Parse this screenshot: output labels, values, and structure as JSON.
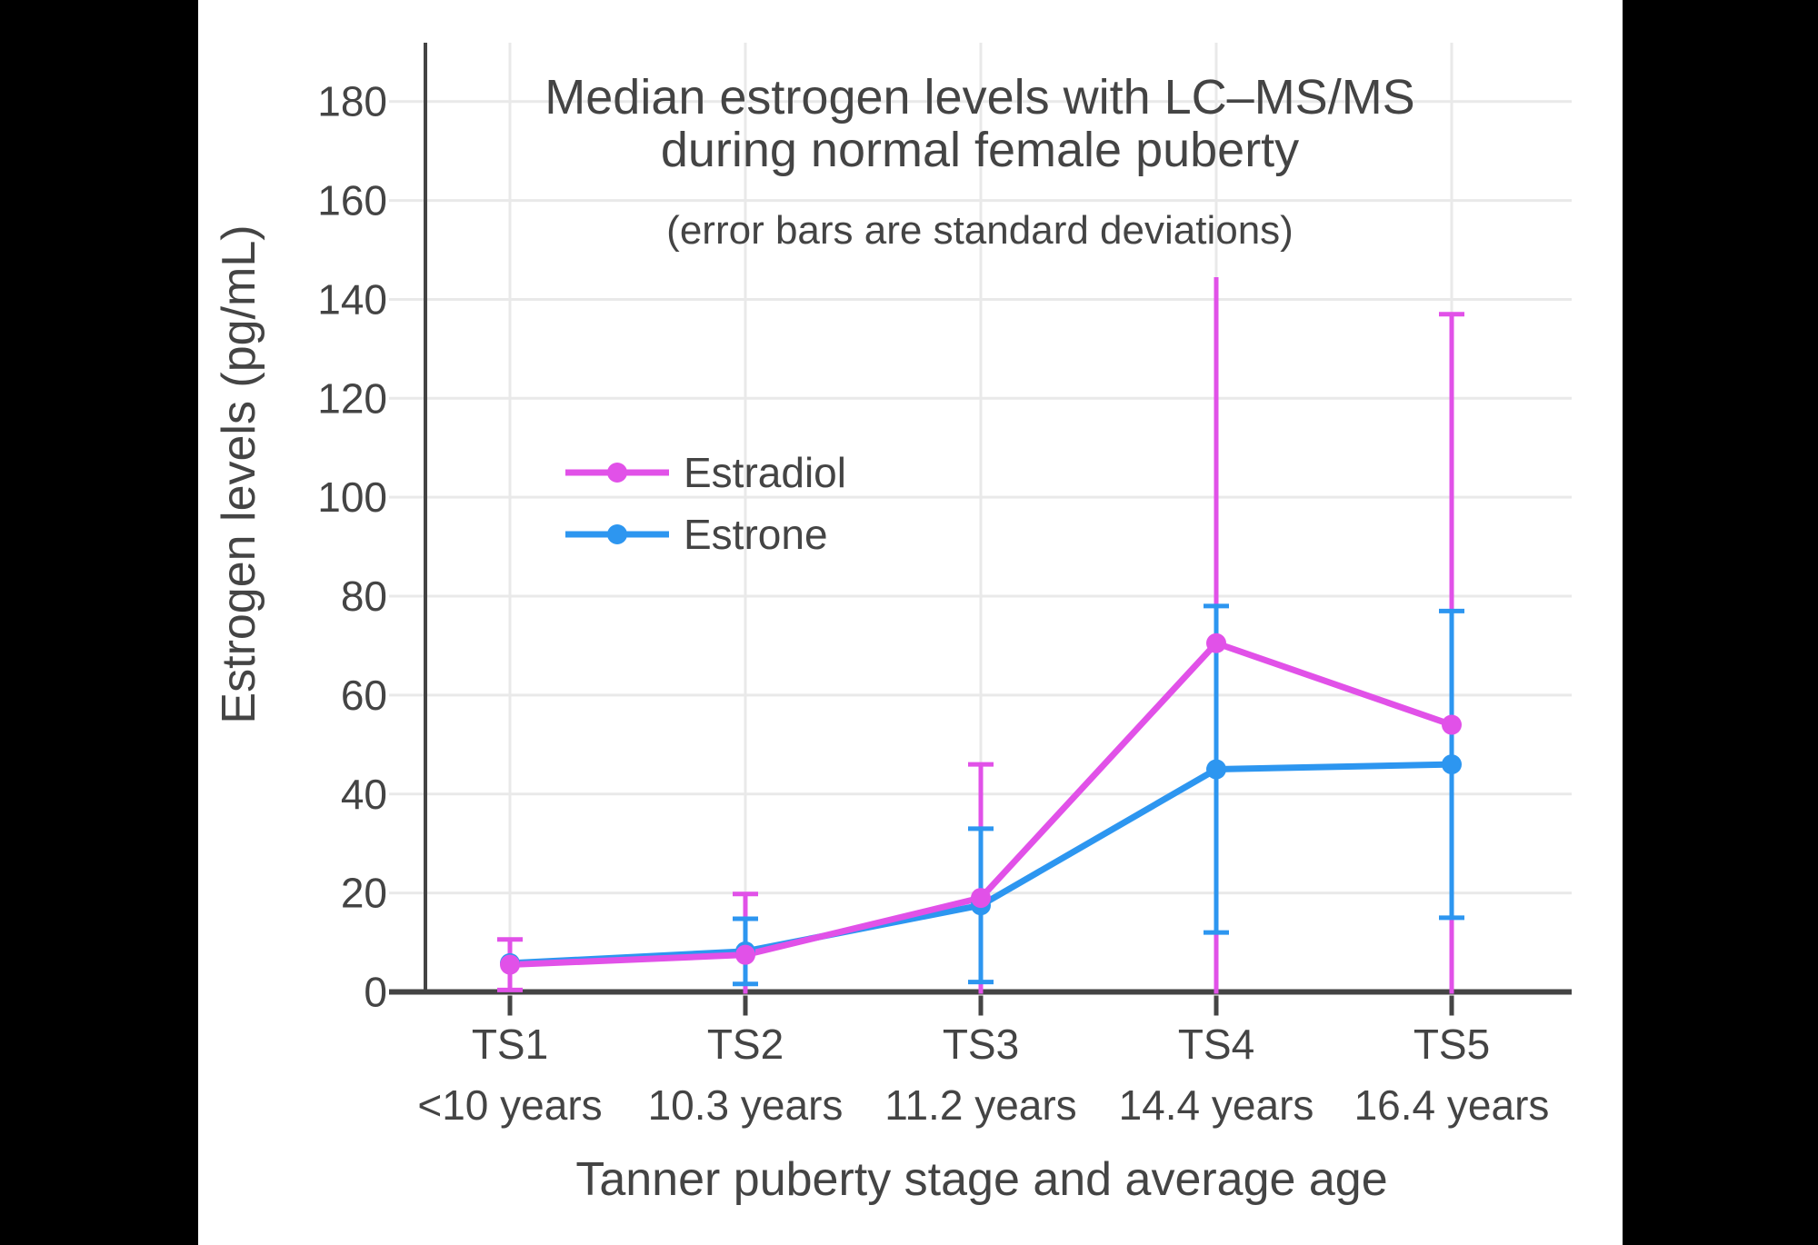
{
  "page": {
    "background": "#000000",
    "panel_background": "#ffffff"
  },
  "chart_data": {
    "type": "line",
    "title_lines": [
      "Median estrogen levels with LC–MS/MS",
      "during normal female puberty"
    ],
    "subtitle": "(error bars are standard deviations)",
    "xlabel": "Tanner puberty stage and average age",
    "ylabel": "Estrogen levels (pg/mL)",
    "categories": [
      {
        "stage": "TS1",
        "age": "<10 years"
      },
      {
        "stage": "TS2",
        "age": "10.3 years"
      },
      {
        "stage": "TS3",
        "age": "11.2 years"
      },
      {
        "stage": "TS4",
        "age": "14.4 years"
      },
      {
        "stage": "TS5",
        "age": "16.4 years"
      }
    ],
    "ylim": [
      0,
      190
    ],
    "yticks": [
      0,
      20,
      40,
      60,
      80,
      100,
      120,
      140,
      160,
      180
    ],
    "grid": true,
    "error_bar_meaning": "standard deviation, clipped at y=0",
    "series": [
      {
        "name": "Estrone",
        "color": "#2D96F0",
        "values": [
          5.8,
          8.2,
          17.5,
          45,
          46
        ],
        "sd": [
          0,
          6.6,
          15.5,
          33,
          31
        ],
        "top_cap": [
          false,
          true,
          true,
          true,
          true
        ]
      },
      {
        "name": "Estradiol",
        "color": "#E151E8",
        "values": [
          5.5,
          7.5,
          19,
          70.5,
          54
        ],
        "sd": [
          5.1,
          12.3,
          27,
          74,
          83
        ],
        "top_cap": [
          true,
          true,
          true,
          false,
          true
        ]
      }
    ],
    "legend": {
      "order": [
        "Estradiol",
        "Estrone"
      ],
      "position": "inside upper-left"
    },
    "colors": {
      "text": "#444444",
      "axis": "#444444",
      "grid": "#e9e9e9"
    }
  }
}
